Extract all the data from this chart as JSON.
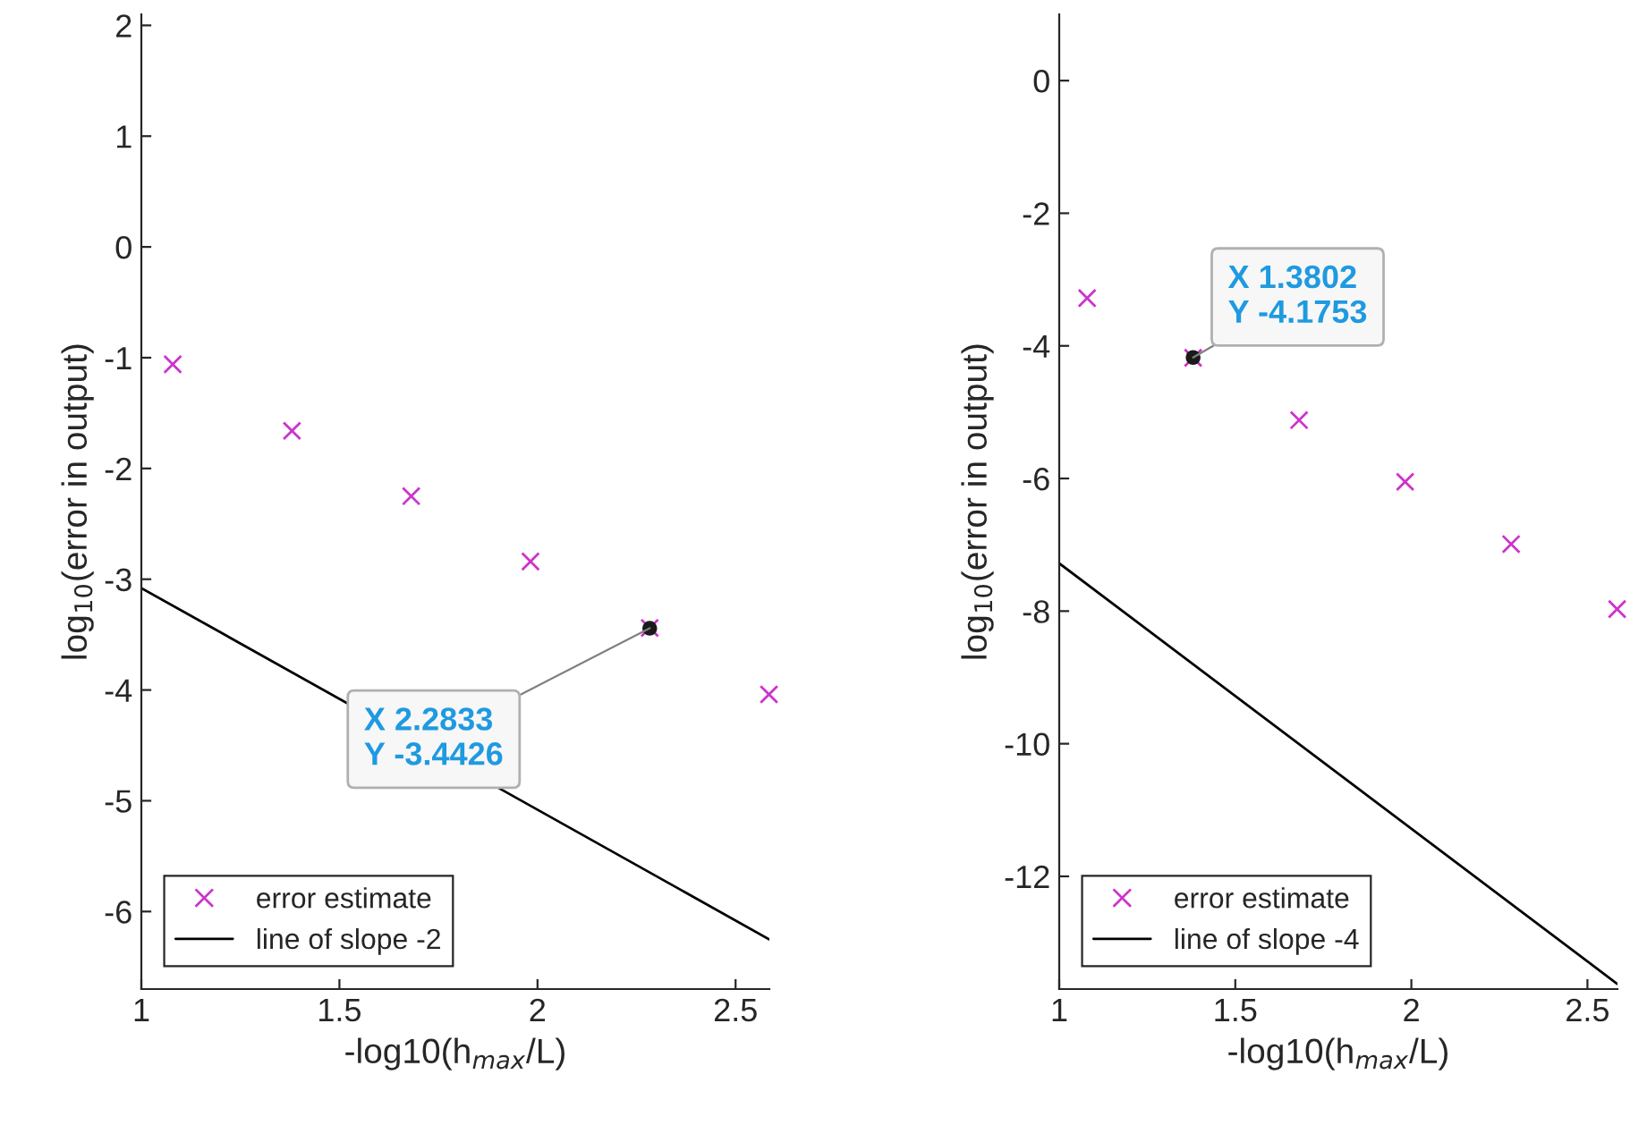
{
  "chart_data": [
    {
      "type": "scatter",
      "xlabel": "-log10(h$_{max}$/L)",
      "ylabel": "log$_{10}$(error in output)",
      "xlim": [
        1,
        2.5853
      ],
      "ylim": [
        -6.7,
        2.1
      ],
      "xticks": [
        1,
        1.5,
        2,
        2.5
      ],
      "yticks": [
        -6,
        -5,
        -4,
        -3,
        -2,
        -1,
        0,
        1,
        2
      ],
      "legend": "bottom left",
      "grid": false,
      "series": [
        {
          "name": "error estimate",
          "marker": "cross",
          "color": "#cc33cc",
          "x": [
            1.0792,
            1.3802,
            1.6812,
            1.9823,
            2.2833,
            2.5843
          ],
          "values": [
            -1.06,
            -1.66,
            -2.25,
            -2.84,
            -3.44,
            -4.04
          ]
        },
        {
          "name": "line of slope -2",
          "type": "line",
          "marker": "none",
          "color": "#000000",
          "x": [
            1,
            2.5843
          ],
          "values": [
            -3.08,
            -6.25
          ]
        }
      ],
      "annotations": [
        {
          "text": "X 2.2833\nY -3.4426",
          "x": 2.2833,
          "y": -3.4426
        }
      ]
    },
    {
      "type": "scatter",
      "xlabel": "-log10(h$_{max}$/L)",
      "ylabel": "log$_{10}$(error in output)",
      "xlim": [
        1,
        2.5853
      ],
      "ylim": [
        -13.7,
        1.0
      ],
      "xticks": [
        1,
        1.5,
        2,
        2.5
      ],
      "yticks": [
        -12,
        -10,
        -8,
        -6,
        -4,
        -2,
        0
      ],
      "legend": "bottom left",
      "grid": false,
      "series": [
        {
          "name": "error estimate",
          "marker": "cross",
          "color": "#cc33cc",
          "x": [
            1.0792,
            1.3802,
            1.6812,
            1.9823,
            2.2833,
            2.5843
          ],
          "values": [
            -3.28,
            -4.18,
            -5.12,
            -6.05,
            -6.99,
            -7.97
          ]
        },
        {
          "name": "line of slope -4",
          "type": "line",
          "marker": "none",
          "color": "#000000",
          "x": [
            1,
            2.5843
          ],
          "values": [
            -7.28,
            -13.62
          ]
        }
      ],
      "annotations": [
        {
          "text": "X 1.3802\nY -4.1753",
          "x": 1.3802,
          "y": -4.1753
        }
      ]
    }
  ]
}
